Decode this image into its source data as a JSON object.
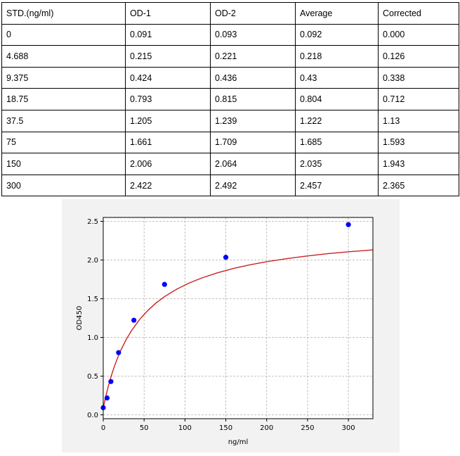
{
  "table": {
    "headers": [
      "STD.(ng/ml)",
      "OD-1",
      "OD-2",
      "Average",
      "Corrected"
    ],
    "rows": [
      [
        "0",
        "0.091",
        "0.093",
        "0.092",
        "0.000"
      ],
      [
        "4.688",
        "0.215",
        "0.221",
        "0.218",
        "0.126"
      ],
      [
        "9.375",
        "0.424",
        "0.436",
        "0.43",
        "0.338"
      ],
      [
        "18.75",
        "0.793",
        "0.815",
        "0.804",
        "0.712"
      ],
      [
        "37.5",
        "1.205",
        "1.239",
        "1.222",
        "1.13"
      ],
      [
        "75",
        "1.661",
        "1.709",
        "1.685",
        "1.593"
      ],
      [
        "150",
        "2.006",
        "2.064",
        "2.035",
        "1.943"
      ],
      [
        "300",
        "2.422",
        "2.492",
        "2.457",
        "2.365"
      ]
    ]
  },
  "chart_data": {
    "type": "scatter",
    "title": "",
    "xlabel": "ng/ml",
    "ylabel": "OD450",
    "xlim": [
      0,
      330
    ],
    "ylim": [
      -0.05,
      2.55
    ],
    "xticks": [
      0,
      50,
      100,
      150,
      200,
      250,
      300
    ],
    "yticks": [
      0.0,
      0.5,
      1.0,
      1.5,
      2.0,
      2.5
    ],
    "grid": true,
    "series": [
      {
        "type": "scatter",
        "color": "#0000ff",
        "x": [
          0,
          4.688,
          9.375,
          18.75,
          37.5,
          75,
          150,
          300
        ],
        "y": [
          0.092,
          0.218,
          0.43,
          0.804,
          1.222,
          1.685,
          2.035,
          2.457
        ]
      },
      {
        "type": "line",
        "color": "#cc2222",
        "x": [
          0,
          2,
          4,
          6,
          8,
          10,
          14,
          18,
          22,
          28,
          35,
          45,
          55,
          65,
          75,
          90,
          105,
          120,
          140,
          160,
          180,
          200,
          225,
          250,
          275,
          300,
          330
        ],
        "y": [
          0.09,
          0.187,
          0.277,
          0.36,
          0.437,
          0.509,
          0.637,
          0.748,
          0.845,
          0.971,
          1.094,
          1.238,
          1.353,
          1.448,
          1.527,
          1.624,
          1.702,
          1.766,
          1.836,
          1.893,
          1.939,
          1.978,
          2.019,
          2.053,
          2.082,
          2.106,
          2.131
        ]
      }
    ]
  }
}
